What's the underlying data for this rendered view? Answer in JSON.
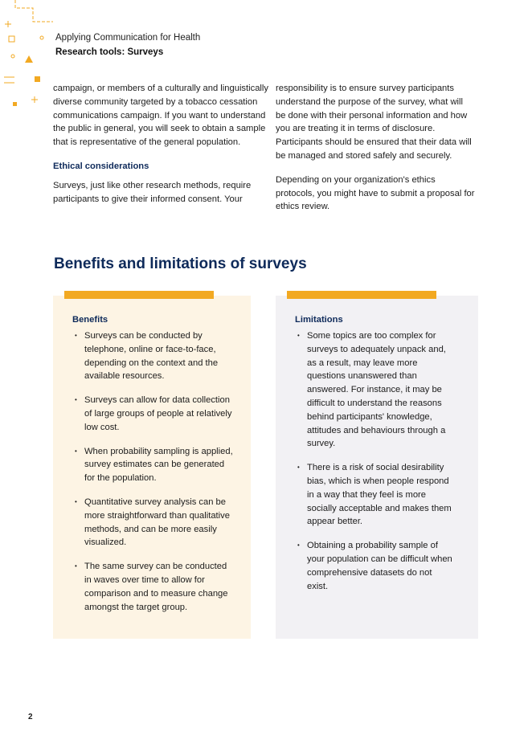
{
  "header": {
    "series": "Applying Communication for Health",
    "title": "Research tools: Surveys"
  },
  "left_column": {
    "p1": "campaign, or members of a culturally and linguistically diverse community targeted by a tobacco cessation communications campaign. If you want to understand the public in general, you will seek to obtain a sample that is representative of the general population.",
    "subheading": "Ethical considerations",
    "p2": "Surveys, just like other research methods, require participants to give their informed consent. Your"
  },
  "right_column": {
    "p1": "responsibility is to ensure survey participants understand the purpose of the survey, what will be done with their personal information and how you are treating it in terms of disclosure. Participants should be ensured that their data will be managed and stored safely and securely.",
    "p2": "Depending on your organization's ethics protocols, you might have to submit a proposal for ethics review."
  },
  "section_title": "Benefits and limitations of surveys",
  "benefits": {
    "title": "Benefits",
    "items": [
      "Surveys can be conducted by telephone, online or face-to-face, depending on the context and the available resources.",
      "Surveys can allow for data collection of large groups of people at relatively low cost.",
      "When probability sampling is applied, survey estimates can be generated for the population.",
      "Quantitative survey analysis can be more straightforward than qualitative methods, and can be more easily visualized.",
      "The same survey can be conducted in waves over time to allow for comparison and to measure change amongst the target group."
    ]
  },
  "limitations": {
    "title": "Limitations",
    "items": [
      "Some topics are too complex for surveys to adequately unpack and, as a result, may leave more questions unanswered than answered. For instance, it may be difficult to understand the reasons behind participants' knowledge, attitudes and behaviours through a survey.",
      "There is a risk of social desirability bias, which is when people respond in a way that they feel is more socially acceptable and makes them appear better.",
      "Obtaining a probability sample of your population can be difficult when comprehensive datasets do not exist."
    ]
  },
  "page_number": "2",
  "colors": {
    "navy": "#0e2a5a",
    "accent": "#f2a922",
    "benefits_bg": "#fdf4e4",
    "limitations_bg": "#f2f1f4"
  }
}
